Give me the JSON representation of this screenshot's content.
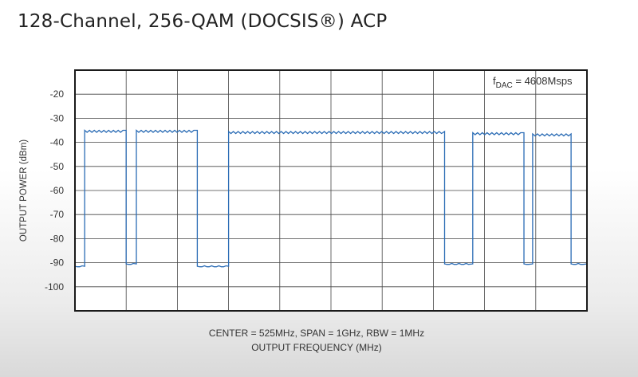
{
  "chart_data": {
    "type": "line",
    "title": "128-Channel, 256-QAM (DOCSIS®) ACP",
    "ylabel": "OUTPUT POWER (dBm)",
    "xlabel": "OUTPUT FREQUENCY (MHz)",
    "xinfo": "CENTER = 525MHz, SPAN = 1GHz, RBW = 1MHz",
    "annotation": {
      "prefix": "f",
      "sub": "DAC",
      "suffix": " = 4608Msps"
    },
    "xlim": [
      25,
      1025
    ],
    "ylim": [
      -110,
      -10
    ],
    "yticks": [
      -20,
      -30,
      -40,
      -50,
      -60,
      -70,
      -80,
      -90,
      -100
    ],
    "ytick_labels": [
      "-20",
      "-30",
      "-40",
      "-50",
      "-60",
      "-70",
      "-80",
      "-90",
      "-100"
    ],
    "xgrid": [
      125,
      225,
      325,
      425,
      525,
      625,
      725,
      825,
      925
    ],
    "grid": true,
    "line_color": "#2b6cb5",
    "series": [
      {
        "x": [
          25,
          44,
          44,
          125,
          125,
          145,
          145,
          264,
          264,
          325,
          325,
          747,
          747,
          802,
          802,
          902,
          902,
          919,
          919,
          994,
          994,
          1025
        ],
        "y": [
          -91.5,
          -91.5,
          -35,
          -35,
          -90.5,
          -90.5,
          -35,
          -35,
          -91.5,
          -91.5,
          -35.5,
          -35.5,
          -90.5,
          -90.5,
          -36,
          -36,
          -90.5,
          -90.5,
          -36.5,
          -36.5,
          -90.5,
          -90.5
        ]
      }
    ]
  }
}
